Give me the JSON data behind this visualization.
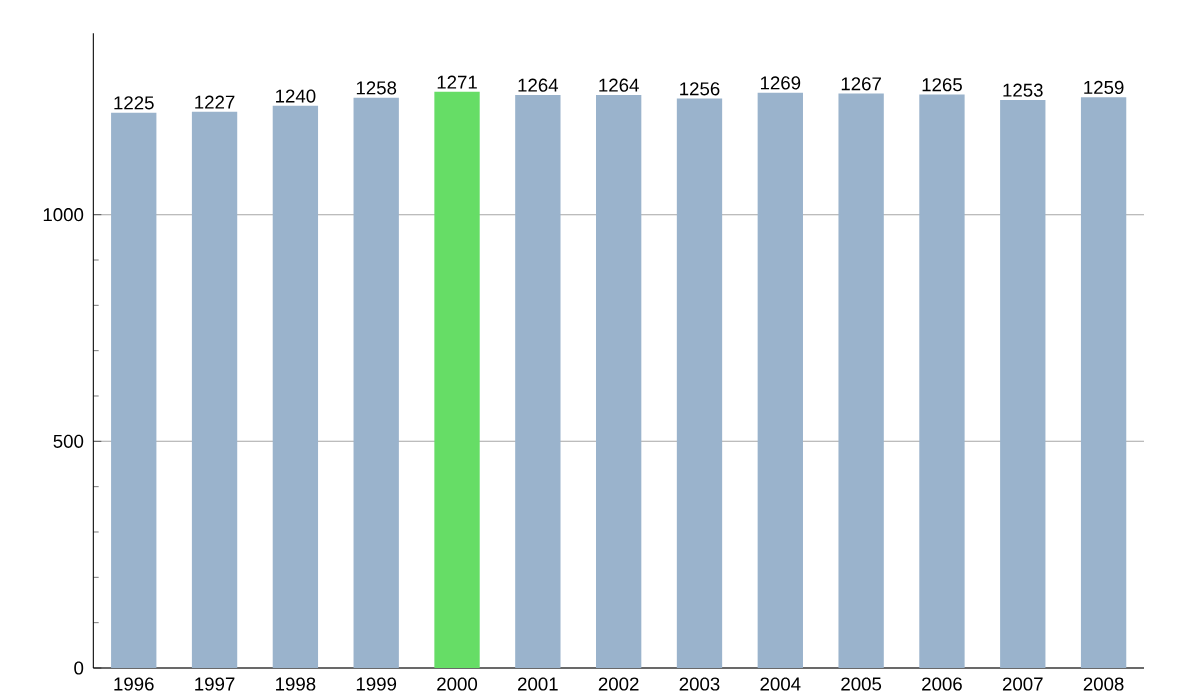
{
  "chart_data": {
    "type": "bar",
    "categories": [
      "1996",
      "1997",
      "1998",
      "1999",
      "2000",
      "2001",
      "2002",
      "2003",
      "2004",
      "2005",
      "2006",
      "2007",
      "2008"
    ],
    "values": [
      1225,
      1227,
      1240,
      1258,
      1271,
      1264,
      1264,
      1256,
      1269,
      1267,
      1265,
      1253,
      1259
    ],
    "colors": [
      "#9ab3cc",
      "#9ab3cc",
      "#9ab3cc",
      "#9ab3cc",
      "#66dd66",
      "#9ab3cc",
      "#9ab3cc",
      "#9ab3cc",
      "#9ab3cc",
      "#9ab3cc",
      "#9ab3cc",
      "#9ab3cc",
      "#9ab3cc"
    ],
    "ylim": [
      0,
      1400
    ],
    "yticks": [
      0,
      500,
      1000
    ],
    "grid": "y",
    "data_labels": true
  }
}
